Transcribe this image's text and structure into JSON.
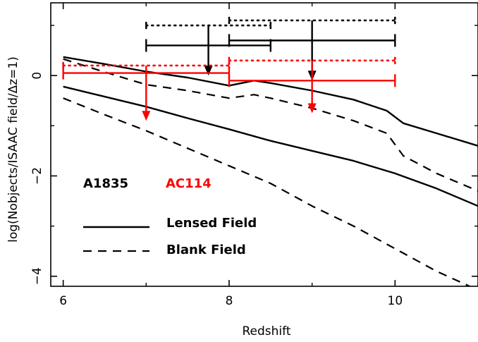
{
  "chart_data": {
    "type": "line",
    "title": "",
    "xlabel": "Redshift",
    "ylabel": "log(Nobjects/ISAAC field/Δz=1)",
    "xlim": [
      5.85,
      11.0
    ],
    "ylim": [
      -4.2,
      1.45
    ],
    "x_ticks": [
      6,
      8,
      10
    ],
    "x_tick_labels": [
      "6",
      "8",
      "10"
    ],
    "y_ticks": [
      0,
      -2,
      -4
    ],
    "y_tick_labels": [
      "0",
      "−2",
      "−4"
    ],
    "grid": false,
    "colors": {
      "A1835": "#000000",
      "AC114": "#ff0000"
    },
    "series": [
      {
        "name": "A1835",
        "label": "Lensed Field",
        "style": "solid",
        "color": "#000000",
        "x": [
          6.0,
          6.5,
          7.0,
          7.5,
          8.0,
          8.3,
          8.5,
          9.0,
          9.5,
          9.9,
          10.1,
          10.5,
          11.0
        ],
        "y": [
          0.37,
          0.23,
          0.08,
          -0.04,
          -0.2,
          -0.1,
          -0.15,
          -0.3,
          -0.48,
          -0.7,
          -0.95,
          -1.15,
          -1.4
        ]
      },
      {
        "name": "AC114",
        "label": "Lensed Field",
        "style": "solid",
        "color": "#000000",
        "x": [
          6.0,
          6.5,
          7.0,
          7.5,
          8.0,
          8.5,
          9.0,
          9.5,
          10.0,
          10.5,
          11.0
        ],
        "y": [
          -0.22,
          -0.42,
          -0.62,
          -0.85,
          -1.07,
          -1.3,
          -1.5,
          -1.7,
          -1.95,
          -2.25,
          -2.6
        ]
      },
      {
        "name": "A1835",
        "label": "Blank Field",
        "style": "dashed",
        "color": "#000000",
        "x": [
          6.0,
          6.5,
          7.0,
          7.5,
          8.0,
          8.3,
          8.5,
          9.0,
          9.5,
          9.9,
          10.1,
          10.5,
          11.0
        ],
        "y": [
          0.33,
          0.07,
          -0.18,
          -0.3,
          -0.45,
          -0.38,
          -0.45,
          -0.65,
          -0.9,
          -1.15,
          -1.6,
          -1.95,
          -2.3
        ]
      },
      {
        "name": "AC114",
        "label": "Blank Field",
        "style": "dashed",
        "color": "#000000",
        "x": [
          6.0,
          6.5,
          7.0,
          7.5,
          8.0,
          8.5,
          9.0,
          9.5,
          10.0,
          10.5,
          10.9
        ],
        "y": [
          -0.45,
          -0.78,
          -1.1,
          -1.45,
          -1.8,
          -2.15,
          -2.6,
          -3.0,
          -3.45,
          -3.9,
          -4.2
        ]
      }
    ],
    "upper_limits": [
      {
        "group": "A1835",
        "color": "#000000",
        "x_low": 7.0,
        "x_high": 8.5,
        "x": 7.75,
        "y": 0.6,
        "dotted_y": 1.0,
        "arrow_to": 0.0
      },
      {
        "group": "A1835",
        "color": "#000000",
        "x_low": 8.0,
        "x_high": 10.0,
        "x": 9.0,
        "y": 0.7,
        "dotted_y": 1.1,
        "arrow_to": -0.1
      },
      {
        "group": "AC114",
        "color": "#ff0000",
        "x_low": 6.0,
        "x_high": 8.0,
        "x": 7.0,
        "y": 0.05,
        "dotted_y": 0.2,
        "arrow_to": -0.9
      },
      {
        "group": "AC114",
        "color": "#ff0000",
        "x_low": 8.0,
        "x_high": 10.0,
        "x": 9.0,
        "y": -0.1,
        "dotted_y": 0.3,
        "arrow_to": -0.75
      }
    ],
    "annotations": [
      {
        "text": "A1835",
        "color": "#000000"
      },
      {
        "text": "AC114",
        "color": "#ff0000"
      }
    ],
    "legend": {
      "placement": "bottom-left",
      "entries": [
        {
          "label": "Lensed Field",
          "style": "solid"
        },
        {
          "label": "Blank Field",
          "style": "dashed"
        }
      ]
    }
  }
}
